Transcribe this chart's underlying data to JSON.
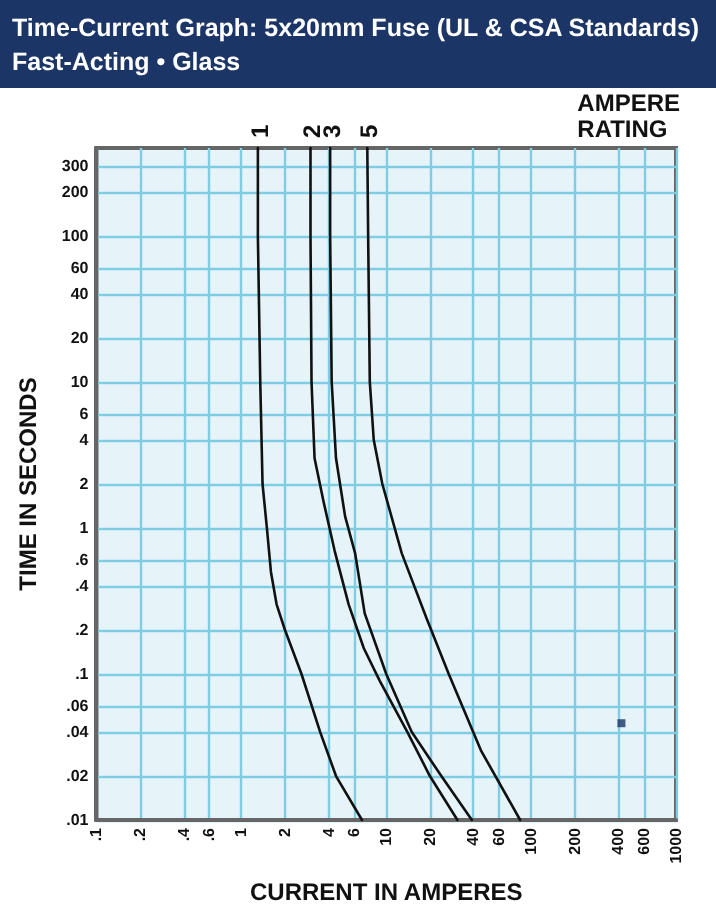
{
  "chart_data": {
    "type": "line",
    "title": "Time-Current Graph: 5x20mm Fuse (UL & CSA Standards)",
    "subtitle": "Fast-Acting • Glass",
    "xlabel": "CURRENT IN AMPERES",
    "ylabel": "TIME IN SECONDS",
    "annotations": [
      "AMPERE\nRATING"
    ],
    "log": "xy",
    "grid": true,
    "marker": "none",
    "line_style": "solid",
    "legend": false,
    "xlim": [
      0.1,
      1000
    ],
    "ylim": [
      0.01,
      400
    ],
    "xticks": [
      {
        "value": 0.1,
        "label": ".1"
      },
      {
        "value": 0.2,
        "label": ".2"
      },
      {
        "value": 0.4,
        "label": ".4"
      },
      {
        "value": 0.6,
        "label": ".6"
      },
      1,
      2,
      4,
      6,
      10,
      20,
      40,
      60,
      100,
      200,
      400,
      600,
      1000
    ],
    "yticks": [
      {
        "value": 0.01,
        "label": ".01"
      },
      {
        "value": 0.02,
        "label": ".02"
      },
      {
        "value": 0.04,
        "label": ".04"
      },
      {
        "value": 0.06,
        "label": ".06"
      },
      {
        "value": 0.1,
        "label": ".1"
      },
      {
        "value": 0.2,
        "label": ".2"
      },
      {
        "value": 0.4,
        "label": ".4"
      },
      {
        "value": 0.6,
        "label": ".6"
      },
      1,
      2,
      4,
      6,
      10,
      20,
      40,
      60,
      100,
      200,
      300
    ],
    "series": [
      {
        "name": "1",
        "color": "#111111",
        "x": [
          1.3,
          1.3,
          1.35,
          1.4,
          1.5,
          1.6,
          1.75,
          2,
          2.6,
          3.5,
          4.5,
          6.8
        ],
        "values": [
          400,
          100,
          10,
          2,
          1,
          0.5,
          0.3,
          0.2,
          0.1,
          0.04,
          0.02,
          0.01
        ]
      },
      {
        "name": "2",
        "color": "#111111",
        "x": [
          3,
          3,
          3.05,
          3.2,
          3.7,
          4.4,
          5.5,
          7,
          9,
          14,
          20,
          31
        ],
        "values": [
          400,
          100,
          10,
          3,
          1.5,
          0.7,
          0.3,
          0.15,
          0.09,
          0.04,
          0.02,
          0.01
        ]
      },
      {
        "name": "3",
        "color": "#111111",
        "x": [
          4.1,
          4.1,
          4.2,
          4.5,
          5.2,
          6.1,
          7.1,
          10,
          15,
          24,
          39
        ],
        "values": [
          400,
          100,
          10,
          3,
          1.2,
          0.67,
          0.26,
          0.1,
          0.04,
          0.02,
          0.01
        ]
      },
      {
        "name": "5",
        "color": "#111111",
        "x": [
          7.4,
          7.5,
          7.7,
          8.2,
          9.4,
          12.8,
          19,
          27,
          45,
          84
        ],
        "values": [
          400,
          100,
          10,
          4,
          2,
          0.67,
          0.24,
          0.1,
          0.03,
          0.01
        ]
      },
      {
        "type": "scatter",
        "marker": "square",
        "color": "#1a3566",
        "x": [
          420
        ],
        "values": [
          0.046
        ]
      }
    ]
  }
}
